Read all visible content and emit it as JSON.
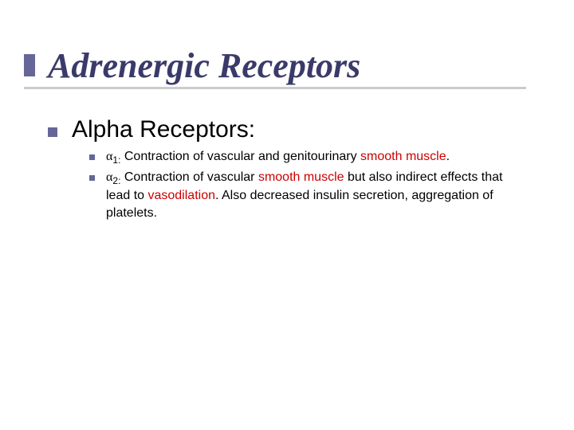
{
  "colors": {
    "accent": "#666699",
    "title_text": "#3a3a6a",
    "underline": "#cccccc",
    "body_text": "#000000",
    "highlight": "#cc0000",
    "background": "#ffffff"
  },
  "typography": {
    "title_family": "Times New Roman",
    "title_size_pt": 44,
    "title_weight": 700,
    "title_style": "italic",
    "body_family": "Verdana",
    "level1_size_pt": 30,
    "level2_size_pt": 16
  },
  "title": "Adrenergic Receptors",
  "level1": {
    "text": "Alpha Receptors:"
  },
  "items": [
    {
      "symbol": "α",
      "subscript": "1:",
      "pre": "Contraction of vascular and genitourinary ",
      "hl1": "smooth muscle",
      "post": "."
    },
    {
      "symbol": "α",
      "subscript": "2:",
      "pre": "Contraction of vascular ",
      "hl1": "smooth muscle",
      "mid": " but also indirect effects that lead to ",
      "hl2": "vasodilation",
      "post": ".   Also decreased insulin secretion, aggregation of platelets."
    }
  ]
}
